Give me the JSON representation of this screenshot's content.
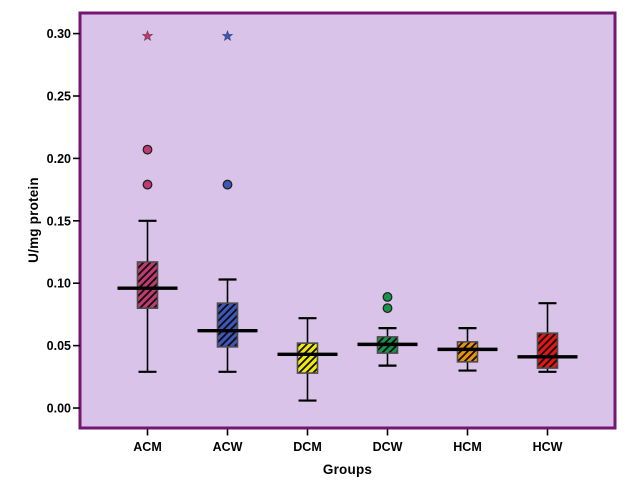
{
  "figure": {
    "background": "#ffffff",
    "plot_bg": "#d9c3e9",
    "frame_color": "#751672",
    "box_outline": "#4d4d4d",
    "line_color": "#000000"
  },
  "chart_data": {
    "type": "boxplot",
    "title": "",
    "xlabel": "Groups",
    "ylabel": "U/mg protein",
    "ylim": [
      -0.016,
      0.3165
    ],
    "yticks": [
      "0.00",
      "0.05",
      "0.10",
      "0.15",
      "0.20",
      "0.25",
      "0.30"
    ],
    "grid": "off",
    "legend": "none",
    "categories": [
      "ACM",
      "ACW",
      "DCM",
      "DCW",
      "HCM",
      "HCW"
    ],
    "series": [
      {
        "group": "ACM",
        "color": "#bf3a6e",
        "whisker_low": 0.029,
        "q1": 0.08,
        "median": 0.096,
        "q3": 0.117,
        "whisker_high": 0.15,
        "outliers": [
          0.179,
          0.207
        ],
        "extremes": [
          0.298
        ]
      },
      {
        "group": "ACW",
        "color": "#3d56ba",
        "whisker_low": 0.029,
        "q1": 0.049,
        "median": 0.062,
        "q3": 0.084,
        "whisker_high": 0.103,
        "outliers": [
          0.179
        ],
        "extremes": [
          0.298
        ]
      },
      {
        "group": "DCM",
        "color": "#efe714",
        "whisker_low": 0.006,
        "q1": 0.028,
        "median": 0.043,
        "q3": 0.052,
        "whisker_high": 0.072,
        "outliers": [],
        "extremes": []
      },
      {
        "group": "DCW",
        "color": "#17934a",
        "whisker_low": 0.034,
        "q1": 0.044,
        "median": 0.051,
        "q3": 0.057,
        "whisker_high": 0.064,
        "outliers": [
          0.08,
          0.089
        ],
        "extremes": []
      },
      {
        "group": "HCM",
        "color": "#e8920e",
        "whisker_low": 0.03,
        "q1": 0.037,
        "median": 0.047,
        "q3": 0.053,
        "whisker_high": 0.064,
        "outliers": [],
        "extremes": []
      },
      {
        "group": "HCW",
        "color": "#e31616",
        "whisker_low": 0.029,
        "q1": 0.032,
        "median": 0.041,
        "q3": 0.06,
        "whisker_high": 0.084,
        "outliers": [],
        "extremes": []
      }
    ]
  }
}
